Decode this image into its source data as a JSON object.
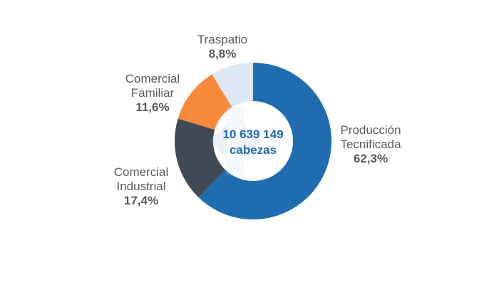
{
  "chart_data": {
    "type": "pie",
    "variant": "donut",
    "center_label": [
      "10 639 149",
      "cabezas"
    ],
    "slices": [
      {
        "name_lines": [
          "Producción",
          "Tecnificada"
        ],
        "value": 62.3,
        "value_label": "62,3%",
        "color": "#1f6cb0"
      },
      {
        "name_lines": [
          "Comercial",
          "Industrial"
        ],
        "value": 17.4,
        "value_label": "17,4%",
        "color": "#404a55"
      },
      {
        "name_lines": [
          "Comercial",
          "Familiar"
        ],
        "value": 11.6,
        "value_label": "11,6%",
        "color": "#f7893b"
      },
      {
        "name_lines": [
          "Traspatio"
        ],
        "value": 8.8,
        "value_label": "8,8%",
        "color": "#dde8f4"
      }
    ]
  }
}
